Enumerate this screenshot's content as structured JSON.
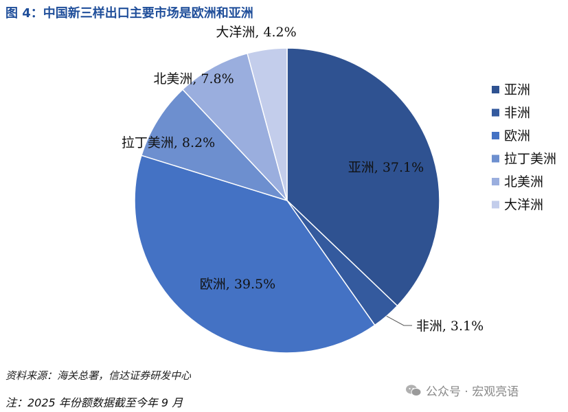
{
  "title": "图 4：中国新三样出口主要市场是欧洲和亚洲",
  "source": "资料来源：海关总署，信达证券研发中心",
  "note": "注：2025 年份额数据截至今年 9 月",
  "watermark": "公众号 · 宏观亮语",
  "chart_data": {
    "type": "pie",
    "title": "",
    "start": "12 o'clock",
    "direction": "clockwise",
    "legend_position": "right",
    "series": [
      {
        "name": "亚洲",
        "value": 37.1,
        "label": "亚洲, 37.1%",
        "color": "#2f5291"
      },
      {
        "name": "非洲",
        "value": 3.1,
        "label": "非洲, 3.1%",
        "color": "#345a9e"
      },
      {
        "name": "欧洲",
        "value": 39.5,
        "label": "欧洲, 39.5%",
        "color": "#4472c4"
      },
      {
        "name": "拉丁美洲",
        "value": 8.2,
        "label": "拉丁美洲, 8.2%",
        "color": "#6d8fcf"
      },
      {
        "name": "北美洲",
        "value": 7.8,
        "label": "北美洲, 7.8%",
        "color": "#9aaede"
      },
      {
        "name": "大洋洲",
        "value": 4.2,
        "label": "大洋洲, 4.2%",
        "color": "#c3cdeb"
      }
    ]
  }
}
